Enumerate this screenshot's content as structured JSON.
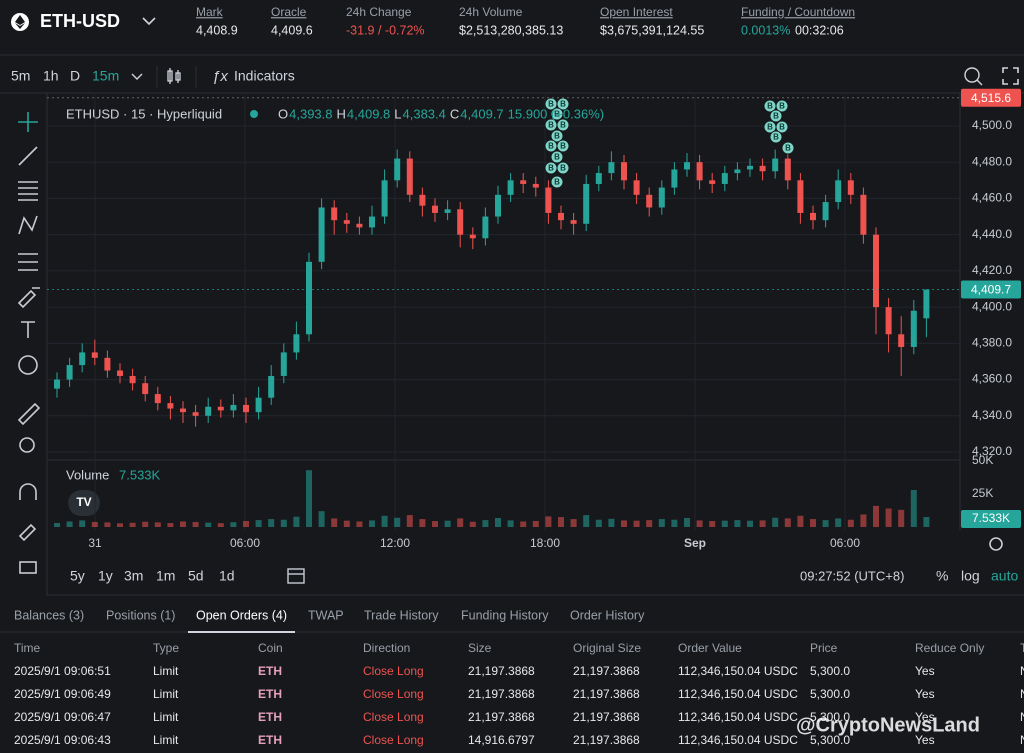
{
  "header": {
    "symbol": "ETH-USD",
    "stats": [
      {
        "label": "Mark",
        "value": "4,408.9"
      },
      {
        "label": "Oracle",
        "value": "4,409.6"
      },
      {
        "label": "24h Change",
        "value": "-31.9 / -0.72%"
      },
      {
        "label": "24h Volume",
        "value": "$2,513,280,385.13"
      },
      {
        "label": "Open Interest",
        "value": "$3,675,391,124.55"
      },
      {
        "label": "Funding / Countdown",
        "value": "0.0013%",
        "value2": "00:32:06"
      }
    ]
  },
  "toolbar": {
    "intervals": [
      "5m",
      "1h",
      "D",
      "15m"
    ],
    "indicators": "Indicators"
  },
  "chart_data": {
    "type": "candlestick",
    "title": "ETHUSD · 15 · Hyperliquid",
    "ohlc": [
      {
        "label": "O",
        "value": "4,393.8"
      },
      {
        "label": "H",
        "value": "4,409.8"
      },
      {
        "label": "L",
        "value": "4,383.4"
      },
      {
        "label": "C",
        "value": "4,409.7"
      }
    ],
    "change": "15.900 (+0.36%)",
    "up_color": "#26a69a",
    "down_color": "#ef5350",
    "candles": [
      [
        4355,
        4364,
        4350,
        4360
      ],
      [
        4360,
        4372,
        4356,
        4368
      ],
      [
        4368,
        4380,
        4364,
        4375
      ],
      [
        4375,
        4382,
        4368,
        4372
      ],
      [
        4372,
        4376,
        4361,
        4365
      ],
      [
        4365,
        4369,
        4358,
        4362
      ],
      [
        4362,
        4366,
        4354,
        4358
      ],
      [
        4358,
        4362,
        4348,
        4352
      ],
      [
        4352,
        4356,
        4343,
        4347
      ],
      [
        4347,
        4351,
        4338,
        4344
      ],
      [
        4344,
        4348,
        4336,
        4342
      ],
      [
        4342,
        4346,
        4334,
        4340
      ],
      [
        4340,
        4350,
        4336,
        4345
      ],
      [
        4345,
        4349,
        4339,
        4343
      ],
      [
        4343,
        4352,
        4339,
        4346
      ],
      [
        4346,
        4350,
        4336,
        4342
      ],
      [
        4342,
        4356,
        4338,
        4350
      ],
      [
        4350,
        4368,
        4346,
        4362
      ],
      [
        4362,
        4380,
        4358,
        4375
      ],
      [
        4375,
        4392,
        4371,
        4385
      ],
      [
        4385,
        4430,
        4381,
        4425
      ],
      [
        4425,
        4460,
        4421,
        4455
      ],
      [
        4455,
        4459,
        4440,
        4448
      ],
      [
        4448,
        4452,
        4441,
        4446
      ],
      [
        4446,
        4450,
        4440,
        4444
      ],
      [
        4444,
        4456,
        4440,
        4450
      ],
      [
        4450,
        4476,
        4446,
        4470
      ],
      [
        4470,
        4487,
        4466,
        4482
      ],
      [
        4482,
        4486,
        4458,
        4462
      ],
      [
        4462,
        4466,
        4450,
        4456
      ],
      [
        4456,
        4460,
        4447,
        4452
      ],
      [
        4452,
        4459,
        4448,
        4454
      ],
      [
        4454,
        4458,
        4433,
        4440
      ],
      [
        4440,
        4444,
        4432,
        4438
      ],
      [
        4438,
        4455,
        4434,
        4450
      ],
      [
        4450,
        4467,
        4446,
        4462
      ],
      [
        4462,
        4474,
        4458,
        4470
      ],
      [
        4470,
        4474,
        4463,
        4468
      ],
      [
        4468,
        4472,
        4461,
        4466
      ],
      [
        4466,
        4470,
        4446,
        4452
      ],
      [
        4452,
        4456,
        4443,
        4448
      ],
      [
        4448,
        4452,
        4440,
        4446
      ],
      [
        4446,
        4473,
        4442,
        4468
      ],
      [
        4468,
        4478,
        4464,
        4474
      ],
      [
        4474,
        4486,
        4470,
        4480
      ],
      [
        4480,
        4484,
        4465,
        4470
      ],
      [
        4470,
        4474,
        4457,
        4462
      ],
      [
        4462,
        4466,
        4450,
        4455
      ],
      [
        4455,
        4470,
        4451,
        4466
      ],
      [
        4466,
        4480,
        4462,
        4476
      ],
      [
        4476,
        4485,
        4472,
        4480
      ],
      [
        4480,
        4484,
        4465,
        4470
      ],
      [
        4470,
        4474,
        4463,
        4468
      ],
      [
        4468,
        4478,
        4464,
        4474
      ],
      [
        4474,
        4480,
        4470,
        4476
      ],
      [
        4476,
        4482,
        4472,
        4478
      ],
      [
        4478,
        4482,
        4470,
        4475
      ],
      [
        4475,
        4487,
        4471,
        4482
      ],
      [
        4482,
        4486,
        4465,
        4470
      ],
      [
        4470,
        4474,
        4446,
        4452
      ],
      [
        4452,
        4456,
        4443,
        4448
      ],
      [
        4448,
        4462,
        4444,
        4458
      ],
      [
        4458,
        4476,
        4454,
        4470
      ],
      [
        4470,
        4474,
        4457,
        4462
      ],
      [
        4462,
        4466,
        4435,
        4440
      ],
      [
        4440,
        4444,
        4385,
        4400
      ],
      [
        4400,
        4405,
        4375,
        4385
      ],
      [
        4385,
        4395,
        4362,
        4378
      ],
      [
        4378,
        4404,
        4374,
        4398
      ],
      [
        4393.8,
        4409.8,
        4383.4,
        4409.7
      ]
    ],
    "ylim": [
      4315.6,
      4517.1
    ],
    "yticks": [
      {
        "value": 4320,
        "label": "4,320.0"
      },
      {
        "value": 4340,
        "label": "4,340.0"
      },
      {
        "value": 4360,
        "label": "4,360.0"
      },
      {
        "value": 4380,
        "label": "4,380.0"
      },
      {
        "value": 4400,
        "label": "4,400.0"
      },
      {
        "value": 4420,
        "label": "4,420.0"
      },
      {
        "value": 4440,
        "label": "4,440.0"
      },
      {
        "value": 4460,
        "label": "4,460.0"
      },
      {
        "value": 4480,
        "label": "4,480.0"
      },
      {
        "value": 4500,
        "label": "4,500.0"
      }
    ],
    "price_tags": [
      {
        "value": 4515.6,
        "label": "4,515.6",
        "color": "#ef5350"
      },
      {
        "value": 4409.7,
        "label": "4,409.7",
        "color": "#26a69a"
      }
    ],
    "marker_label": "B",
    "xticks": [
      "31",
      "06:00",
      "12:00",
      "18:00",
      "Sep",
      "06:00"
    ],
    "volume": {
      "name": "Volume",
      "values": [
        3000,
        4200,
        5000,
        3800,
        3500,
        2800,
        3200,
        4000,
        3500,
        3000,
        4200,
        3800,
        3300,
        2900,
        3600,
        4500,
        5200,
        6000,
        5500,
        7800,
        43000,
        12000,
        6500,
        4800,
        4200,
        5000,
        8500,
        7000,
        9000,
        6000,
        4500,
        4800,
        6500,
        4000,
        5200,
        6800,
        5000,
        4200,
        4600,
        8000,
        7500,
        6000,
        9000,
        5500,
        6200,
        5000,
        4800,
        5200,
        6000,
        5500,
        6800,
        5000,
        4500,
        4800,
        5200,
        4800,
        5000,
        7000,
        6500,
        8500,
        6000,
        5200,
        6500,
        5500,
        9500,
        16000,
        14000,
        13000,
        28000,
        7533
      ],
      "last_label": "7.533K",
      "ylim": [
        0,
        50000
      ],
      "yticks": [
        {
          "value": 25000,
          "label": "25K"
        },
        {
          "value": 50000,
          "label": "50K"
        }
      ]
    }
  },
  "range_bar": {
    "ranges": [
      "5y",
      "1y",
      "3m",
      "1m",
      "5d",
      "1d"
    ],
    "clock": "09:27:52 (UTC+8)",
    "options": [
      "%",
      "log",
      "auto"
    ]
  },
  "tabs": {
    "items": [
      "Balances (3)",
      "Positions (1)",
      "Open Orders (4)",
      "TWAP",
      "Trade History",
      "Funding History",
      "Order History"
    ],
    "active": 2
  },
  "table": {
    "columns": [
      "Time",
      "Type",
      "Coin",
      "Direction",
      "Size",
      "Original Size",
      "Order Value",
      "Price",
      "Reduce Only",
      "T"
    ],
    "rows": [
      [
        "2025/9/1 09:06:51",
        "Limit",
        "ETH",
        "Close Long",
        "21,197.3868",
        "21,197.3868",
        "112,346,150.04 USDC",
        "5,300.0",
        "Yes",
        "N"
      ],
      [
        "2025/9/1 09:06:49",
        "Limit",
        "ETH",
        "Close Long",
        "21,197.3868",
        "21,197.3868",
        "112,346,150.04 USDC",
        "5,300.0",
        "Yes",
        "N"
      ],
      [
        "2025/9/1 09:06:47",
        "Limit",
        "ETH",
        "Close Long",
        "21,197.3868",
        "21,197.3868",
        "112,346,150.04 USDC",
        "5,300.0",
        "Yes",
        "N"
      ],
      [
        "2025/9/1 09:06:43",
        "Limit",
        "ETH",
        "Close Long",
        "14,916.6797",
        "21,197.3868",
        "112,346,150.04 USDC",
        "5,300.0",
        "Yes",
        "N"
      ]
    ]
  },
  "watermark": "@CryptoNewsLand"
}
